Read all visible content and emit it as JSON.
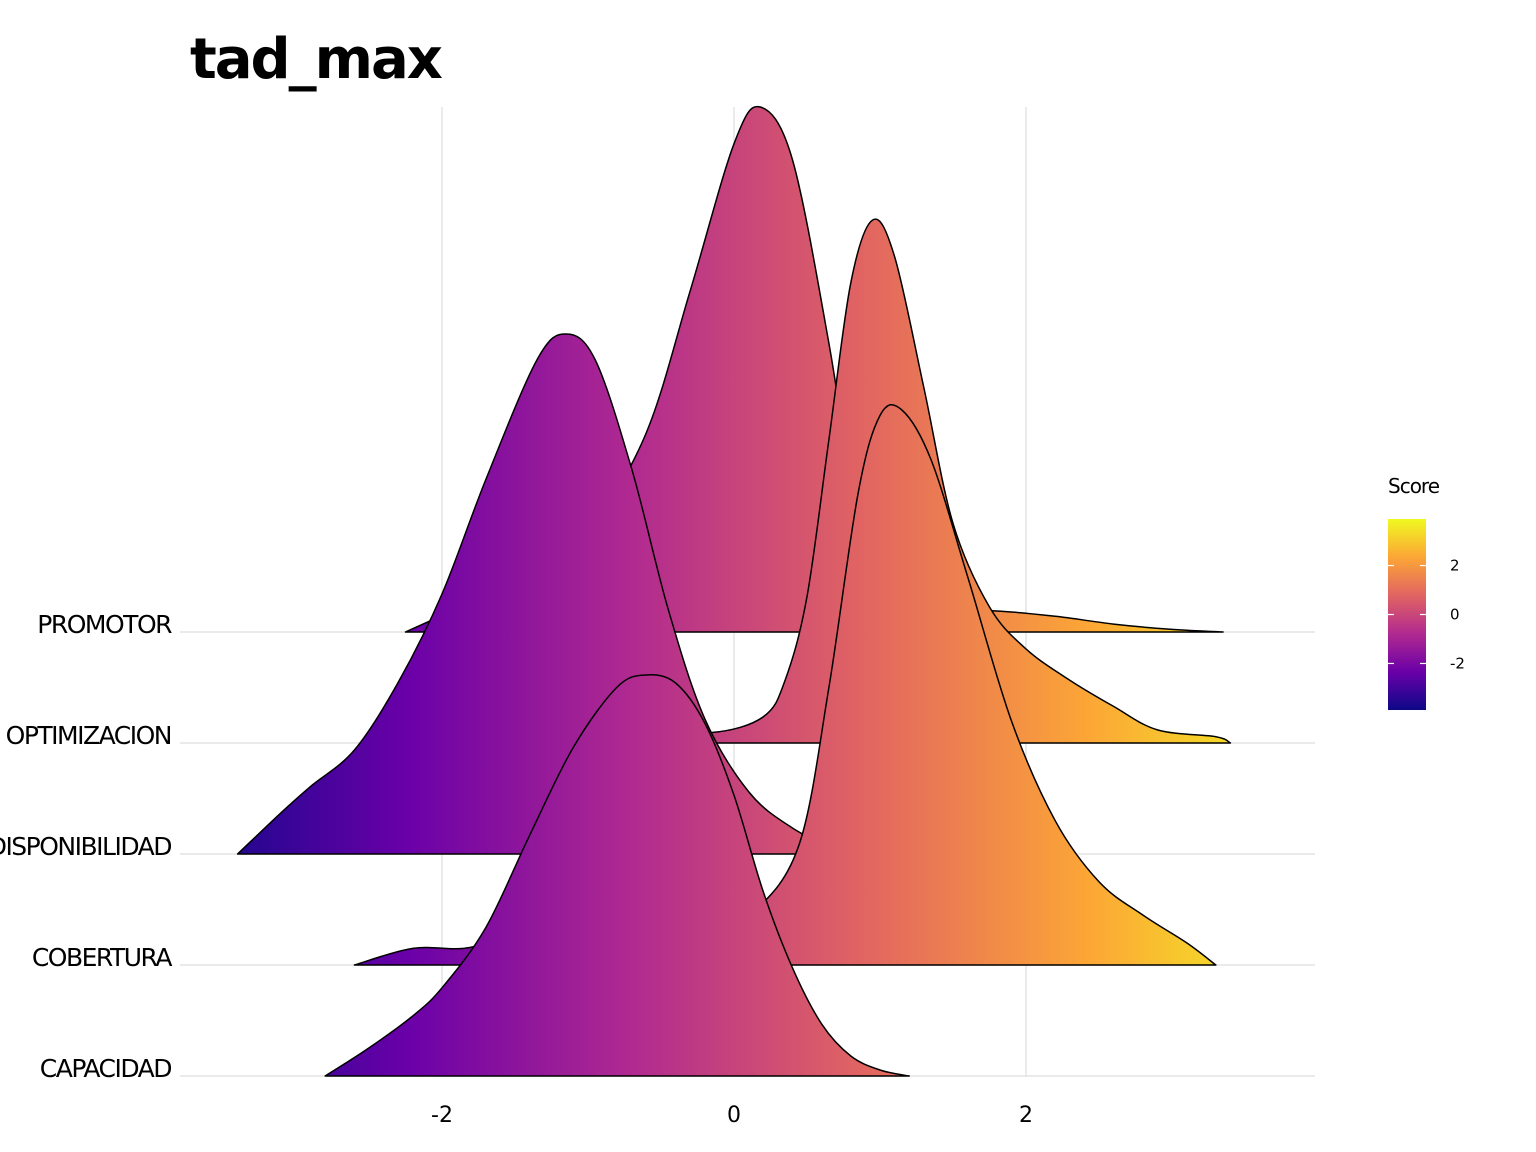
{
  "chart_data": {
    "type": "ridgeline",
    "title": "tad_max",
    "xlabel": "",
    "ylabel": "",
    "xlim": [
      -3.8,
      3.9
    ],
    "x_ticks": [
      -2,
      0,
      2
    ],
    "x_tick_labels": [
      "-2",
      "0",
      "2"
    ],
    "grid": true,
    "categories": [
      "PROMOTOR",
      "OPTIMIZACION",
      "DISPONIBILIDAD",
      "COBERTURA",
      "CAPACIDAD"
    ],
    "series": [
      {
        "category": "PROMOTOR",
        "range": [
          -2.25,
          3.35
        ],
        "points": [
          [
            -2.25,
            0.0
          ],
          [
            -1.6,
            0.08
          ],
          [
            -1.2,
            0.12
          ],
          [
            -1.0,
            0.18
          ],
          [
            -0.6,
            0.38
          ],
          [
            -0.3,
            0.65
          ],
          [
            0.0,
            0.93
          ],
          [
            0.18,
            1.0
          ],
          [
            0.4,
            0.9
          ],
          [
            0.65,
            0.55
          ],
          [
            0.85,
            0.2
          ],
          [
            1.0,
            0.06
          ],
          [
            1.25,
            0.03
          ],
          [
            1.45,
            0.04
          ],
          [
            1.8,
            0.04
          ],
          [
            2.2,
            0.03
          ],
          [
            2.6,
            0.015
          ],
          [
            3.0,
            0.005
          ],
          [
            3.35,
            0.0
          ]
        ]
      },
      {
        "category": "OPTIMIZACION",
        "range": [
          -2.4,
          3.4
        ],
        "points": [
          [
            -2.4,
            0.0
          ],
          [
            -2.2,
            0.03
          ],
          [
            -1.95,
            0.08
          ],
          [
            -1.8,
            0.1
          ],
          [
            -1.5,
            0.1
          ],
          [
            -1.1,
            0.06
          ],
          [
            -0.6,
            0.03
          ],
          [
            -0.15,
            0.02
          ],
          [
            0.2,
            0.05
          ],
          [
            0.35,
            0.12
          ],
          [
            0.5,
            0.28
          ],
          [
            0.65,
            0.58
          ],
          [
            0.8,
            0.88
          ],
          [
            0.95,
            1.0
          ],
          [
            1.1,
            0.93
          ],
          [
            1.3,
            0.68
          ],
          [
            1.5,
            0.42
          ],
          [
            1.75,
            0.26
          ],
          [
            2.0,
            0.18
          ],
          [
            2.3,
            0.12
          ],
          [
            2.6,
            0.07
          ],
          [
            2.9,
            0.025
          ],
          [
            3.3,
            0.012
          ],
          [
            3.4,
            0.0
          ]
        ]
      },
      {
        "category": "DISPONIBILIDAD",
        "range": [
          -3.4,
          0.75
        ],
        "points": [
          [
            -3.4,
            0.0
          ],
          [
            -3.1,
            0.08
          ],
          [
            -2.9,
            0.13
          ],
          [
            -2.6,
            0.2
          ],
          [
            -2.3,
            0.33
          ],
          [
            -2.0,
            0.5
          ],
          [
            -1.7,
            0.72
          ],
          [
            -1.35,
            0.95
          ],
          [
            -1.15,
            1.0
          ],
          [
            -0.95,
            0.95
          ],
          [
            -0.7,
            0.74
          ],
          [
            -0.45,
            0.47
          ],
          [
            -0.2,
            0.26
          ],
          [
            0.1,
            0.12
          ],
          [
            0.4,
            0.05
          ],
          [
            0.75,
            0.0
          ]
        ]
      },
      {
        "category": "COBERTURA",
        "range": [
          -2.6,
          3.3
        ],
        "points": [
          [
            -2.6,
            0.0
          ],
          [
            -2.2,
            0.03
          ],
          [
            -1.85,
            0.03
          ],
          [
            -1.5,
            0.05
          ],
          [
            -1.25,
            0.05
          ],
          [
            -1.05,
            0.04
          ],
          [
            -0.7,
            0.05
          ],
          [
            -0.4,
            0.05
          ],
          [
            -0.2,
            0.06
          ],
          [
            0.15,
            0.1
          ],
          [
            0.45,
            0.22
          ],
          [
            0.65,
            0.5
          ],
          [
            0.85,
            0.85
          ],
          [
            1.0,
            0.99
          ],
          [
            1.15,
            1.0
          ],
          [
            1.35,
            0.91
          ],
          [
            1.6,
            0.7
          ],
          [
            1.9,
            0.44
          ],
          [
            2.2,
            0.26
          ],
          [
            2.5,
            0.15
          ],
          [
            2.8,
            0.09
          ],
          [
            3.1,
            0.04
          ],
          [
            3.3,
            0.0
          ]
        ]
      },
      {
        "category": "CAPACIDAD",
        "range": [
          -2.8,
          1.2
        ],
        "points": [
          [
            -2.8,
            0.0
          ],
          [
            -2.5,
            0.07
          ],
          [
            -2.2,
            0.15
          ],
          [
            -2.0,
            0.22
          ],
          [
            -1.7,
            0.37
          ],
          [
            -1.4,
            0.6
          ],
          [
            -1.1,
            0.82
          ],
          [
            -0.8,
            0.97
          ],
          [
            -0.6,
            1.0
          ],
          [
            -0.4,
            0.98
          ],
          [
            -0.2,
            0.88
          ],
          [
            0.0,
            0.7
          ],
          [
            0.2,
            0.46
          ],
          [
            0.4,
            0.27
          ],
          [
            0.6,
            0.13
          ],
          [
            0.8,
            0.05
          ],
          [
            1.0,
            0.015
          ],
          [
            1.2,
            0.0
          ]
        ]
      }
    ],
    "legend": {
      "title": "Score",
      "placement": "right",
      "ticks": [
        2,
        0,
        -2
      ],
      "tick_labels": [
        "2",
        "0",
        "-2"
      ],
      "range": [
        -3.9,
        3.9
      ],
      "colors": [
        "#0d0887",
        "#6a00a8",
        "#b12a90",
        "#e16462",
        "#fca636",
        "#f0f921"
      ]
    }
  }
}
